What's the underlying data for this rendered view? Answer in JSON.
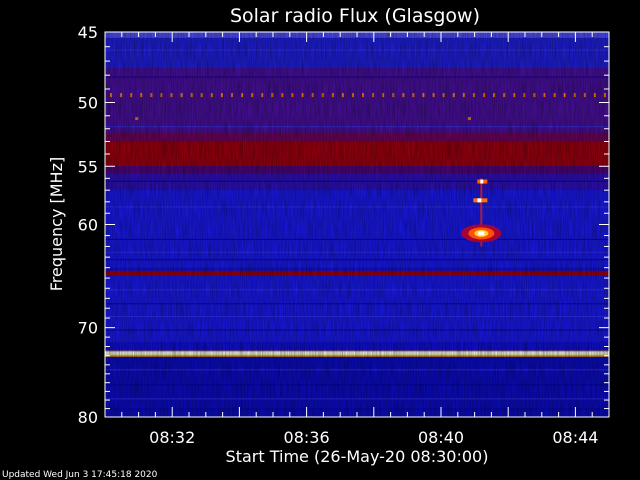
{
  "chart_data": {
    "type": "heatmap",
    "title": "Solar radio Flux (Glasgow)",
    "xlabel": "Start Time (26-May-20 08:30:00)",
    "ylabel": "Frequency [MHz]",
    "x_ticks": [
      {
        "minutes": 2,
        "label": "08:32"
      },
      {
        "minutes": 6,
        "label": "08:36"
      },
      {
        "minutes": 10,
        "label": "08:40"
      },
      {
        "minutes": 14,
        "label": "08:44"
      }
    ],
    "y_ticks": [
      45,
      50,
      55,
      60,
      70,
      80
    ],
    "xlim_minutes": [
      0,
      15
    ],
    "ylim_mhz": [
      45,
      80
    ],
    "y_scale": "log",
    "colormap": [
      "#000080",
      "#0000ff",
      "#3030ff",
      "#b00000",
      "#ff4000",
      "#ffd000",
      "#ffffff"
    ],
    "bands": [
      {
        "f_low": 45.0,
        "f_high": 45.4,
        "level": "bright-edge"
      },
      {
        "f_low": 45.4,
        "f_high": 47.5,
        "level": "mid-blue"
      },
      {
        "f_low": 47.5,
        "f_high": 53.0,
        "level": "purple"
      },
      {
        "f_low": 53.0,
        "f_high": 55.0,
        "level": "red"
      },
      {
        "f_low": 55.0,
        "f_high": 57.0,
        "level": "purple-blue"
      },
      {
        "f_low": 57.0,
        "f_high": 64.0,
        "level": "blue"
      },
      {
        "f_low": 64.3,
        "f_high": 64.8,
        "level": "red"
      },
      {
        "f_low": 64.8,
        "f_high": 71.5,
        "level": "blue"
      },
      {
        "f_low": 72.5,
        "f_high": 73.0,
        "level": "yellow-white"
      },
      {
        "f_low": 73.0,
        "f_high": 80.0,
        "level": "dark-blue"
      }
    ],
    "burst": {
      "time_minutes": 11.2,
      "f_low": 56.0,
      "f_high": 62.0,
      "peak_mhz": 60.8
    }
  },
  "footer": "Updated Wed Jun  3 17:45:18 2020"
}
